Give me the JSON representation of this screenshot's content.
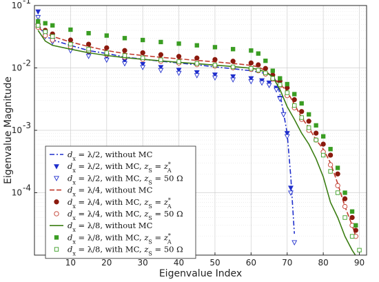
{
  "chart_data": {
    "type": "line",
    "title": "",
    "xlabel": "Eigenvalue Index",
    "ylabel": "Eigenvalue Magnitude",
    "xlim": [
      0,
      92
    ],
    "ylim": [
      1e-05,
      0.1
    ],
    "yscale": "log",
    "grid": true,
    "legend_position": "bottom-left",
    "x_ticks": [
      10,
      20,
      30,
      40,
      50,
      60,
      70,
      80,
      90
    ],
    "x_tick_labels": [
      "10",
      "20",
      "30",
      "40",
      "50",
      "60",
      "70",
      "80",
      "90"
    ],
    "y_ticks": [
      0.0001,
      0.001,
      0.01,
      0.1
    ],
    "y_tick_labels": [
      {
        "base": "10",
        "exp": "-4"
      },
      {
        "base": "10",
        "exp": "-3"
      },
      {
        "base": "10",
        "exp": "-2"
      },
      {
        "base": "10",
        "exp": "-1"
      }
    ],
    "series": [
      {
        "name": "dx = λ/2, without MC",
        "legend_math": "d_x = λ/2",
        "legend_text": ", without MC",
        "color": "#1f2ecc",
        "style": "dashdot",
        "marker": "none",
        "x": [
          1,
          3,
          5,
          10,
          15,
          20,
          25,
          30,
          35,
          40,
          45,
          50,
          55,
          60,
          63,
          65,
          67,
          68,
          69,
          70,
          71,
          72
        ],
        "y": [
          0.05,
          0.033,
          0.028,
          0.023,
          0.019,
          0.017,
          0.015,
          0.0138,
          0.0128,
          0.012,
          0.0112,
          0.0104,
          0.0097,
          0.009,
          0.0084,
          0.008,
          0.0062,
          0.0038,
          0.0019,
          0.0009,
          0.00018,
          2.2e-05
        ]
      },
      {
        "name": "dx = λ/2, with MC, zS = z*A",
        "legend_math": "d_x = λ/2",
        "legend_text": ", with MC, ",
        "legend_math2": "z_S = z_A^*",
        "color": "#1f2ecc",
        "style": "none",
        "marker": "triangle-down-filled",
        "x": [
          1,
          3,
          5,
          10,
          15,
          20,
          25,
          30,
          35,
          40,
          45,
          50,
          55,
          60,
          63,
          65,
          67,
          68,
          69,
          70,
          71
        ],
        "y": [
          0.08,
          0.035,
          0.028,
          0.021,
          0.017,
          0.015,
          0.013,
          0.0115,
          0.0103,
          0.0093,
          0.0085,
          0.0078,
          0.0073,
          0.0068,
          0.0063,
          0.0058,
          0.0048,
          0.0033,
          0.0018,
          0.0009,
          0.00012
        ]
      },
      {
        "name": "dx = λ/2, with MC, zS = 50 Ω",
        "legend_math": "d_x = λ/2",
        "legend_text": ", with MC, ",
        "legend_math2": "z_S = 50 Ω",
        "color": "#1f2ecc",
        "style": "none",
        "marker": "triangle-down-open",
        "x": [
          1,
          3,
          5,
          10,
          15,
          20,
          25,
          30,
          35,
          40,
          45,
          50,
          55,
          60,
          63,
          65,
          67,
          68,
          69,
          70,
          71,
          72
        ],
        "y": [
          0.065,
          0.032,
          0.026,
          0.019,
          0.0155,
          0.0135,
          0.0118,
          0.0103,
          0.0092,
          0.0083,
          0.0076,
          0.007,
          0.0065,
          0.0061,
          0.0058,
          0.0053,
          0.0045,
          0.0032,
          0.0018,
          0.0008,
          0.0001,
          1.6e-05
        ]
      },
      {
        "name": "dx = λ/4, without MC",
        "legend_math": "d_x = λ/4",
        "legend_text": ", without MC",
        "color": "#c0392b",
        "style": "dashed",
        "marker": "none",
        "x": [
          1,
          3,
          5,
          10,
          15,
          20,
          25,
          30,
          35,
          40,
          45,
          50,
          55,
          60,
          62,
          64,
          66,
          68,
          70,
          72,
          74,
          76,
          78,
          80,
          82,
          84,
          86,
          88,
          89
        ],
        "y": [
          0.045,
          0.036,
          0.032,
          0.026,
          0.022,
          0.019,
          0.017,
          0.0158,
          0.0148,
          0.014,
          0.0132,
          0.0125,
          0.0118,
          0.011,
          0.0104,
          0.009,
          0.007,
          0.0055,
          0.0042,
          0.0026,
          0.0016,
          0.0011,
          0.0007,
          0.0005,
          0.0003,
          0.00014,
          6e-05,
          3e-05,
          2e-05
        ]
      },
      {
        "name": "dx = λ/4, with MC, zS = z*A",
        "legend_math": "d_x = λ/4",
        "legend_text": ", with MC, ",
        "legend_math2": "z_S = z_A^*",
        "color": "#8b1a0e",
        "style": "none",
        "marker": "circle-filled",
        "x": [
          1,
          3,
          5,
          10,
          15,
          20,
          25,
          30,
          35,
          40,
          45,
          50,
          55,
          60,
          62,
          64,
          66,
          68,
          70,
          72,
          74,
          76,
          78,
          80,
          82,
          84,
          86,
          88,
          89
        ],
        "y": [
          0.05,
          0.04,
          0.035,
          0.028,
          0.024,
          0.021,
          0.019,
          0.0175,
          0.0163,
          0.0153,
          0.0144,
          0.0136,
          0.0128,
          0.012,
          0.0112,
          0.0098,
          0.0077,
          0.0062,
          0.0048,
          0.0031,
          0.002,
          0.0014,
          0.0009,
          0.0006,
          0.0004,
          0.0002,
          8e-05,
          4e-05,
          2.5e-05
        ]
      },
      {
        "name": "dx = λ/4, with MC, zS = 50 Ω",
        "legend_math": "d_x = λ/4",
        "legend_text": ", with MC, ",
        "legend_math2": "z_S = 50 Ω",
        "color": "#c0392b",
        "style": "none",
        "marker": "circle-open",
        "x": [
          1,
          3,
          5,
          10,
          15,
          20,
          25,
          30,
          35,
          40,
          45,
          50,
          55,
          60,
          62,
          64,
          66,
          68,
          70,
          72,
          74,
          76,
          78,
          80,
          82,
          84,
          86,
          88,
          89
        ],
        "y": [
          0.045,
          0.033,
          0.028,
          0.022,
          0.0185,
          0.0163,
          0.0148,
          0.0137,
          0.0128,
          0.012,
          0.0113,
          0.0107,
          0.0101,
          0.0095,
          0.009,
          0.008,
          0.0066,
          0.0052,
          0.0036,
          0.0023,
          0.0015,
          0.001,
          0.0007,
          0.00045,
          0.00028,
          0.00013,
          6e-05,
          3e-05,
          2e-05
        ]
      },
      {
        "name": "dx = λ/8, without MC",
        "legend_math": "d_x = λ/8",
        "legend_text": ", without MC",
        "color": "#3a7d12",
        "style": "solid",
        "marker": "none",
        "x": [
          1,
          3,
          5,
          10,
          15,
          20,
          25,
          30,
          35,
          40,
          45,
          50,
          55,
          60,
          62,
          64,
          66,
          68,
          70,
          72,
          74,
          76,
          78,
          80,
          82,
          84,
          86,
          88,
          90
        ],
        "y": [
          0.04,
          0.027,
          0.023,
          0.02,
          0.0175,
          0.0158,
          0.0146,
          0.0137,
          0.013,
          0.0123,
          0.0117,
          0.0111,
          0.0105,
          0.0099,
          0.0094,
          0.0086,
          0.0072,
          0.0045,
          0.0024,
          0.0015,
          0.0009,
          0.0006,
          0.00035,
          0.00018,
          7e-05,
          4e-05,
          2e-05,
          1.2e-05,
          8e-06
        ]
      },
      {
        "name": "dx = λ/8, with MC, zS = z*A",
        "legend_math": "d_x = λ/8",
        "legend_text": ", with MC, ",
        "legend_math2": "z_S = z_A^*",
        "color": "#3a9d23",
        "style": "none",
        "marker": "square-filled",
        "x": [
          1,
          3,
          5,
          10,
          15,
          20,
          25,
          30,
          35,
          40,
          45,
          50,
          55,
          60,
          62,
          64,
          66,
          68,
          70,
          72,
          74,
          76,
          78,
          80,
          82,
          84,
          86,
          88,
          89
        ],
        "y": [
          0.056,
          0.052,
          0.048,
          0.041,
          0.036,
          0.033,
          0.03,
          0.028,
          0.026,
          0.0245,
          0.023,
          0.0215,
          0.02,
          0.019,
          0.017,
          0.013,
          0.009,
          0.0068,
          0.0055,
          0.0038,
          0.0027,
          0.0018,
          0.0012,
          0.0008,
          0.0005,
          0.00025,
          0.0001,
          5e-05,
          3e-05
        ]
      },
      {
        "name": "dx = λ/8, with MC, zS = 50 Ω",
        "legend_math": "d_x = λ/8",
        "legend_text": ", with MC, ",
        "legend_math2": "z_S = 50 Ω",
        "color": "#3a9d23",
        "style": "none",
        "marker": "square-open",
        "x": [
          1,
          3,
          5,
          10,
          15,
          20,
          25,
          30,
          35,
          40,
          45,
          50,
          55,
          60,
          62,
          64,
          66,
          68,
          70,
          72,
          74,
          76,
          78,
          80,
          82,
          84,
          86,
          88,
          90
        ],
        "y": [
          0.048,
          0.038,
          0.032,
          0.024,
          0.02,
          0.0175,
          0.0158,
          0.0145,
          0.0135,
          0.0126,
          0.0118,
          0.0111,
          0.0104,
          0.0098,
          0.0092,
          0.0083,
          0.0068,
          0.0054,
          0.004,
          0.0025,
          0.0016,
          0.0011,
          0.0007,
          0.0004,
          0.00022,
          0.0001,
          4e-05,
          2e-05,
          1.2e-05
        ]
      }
    ]
  }
}
